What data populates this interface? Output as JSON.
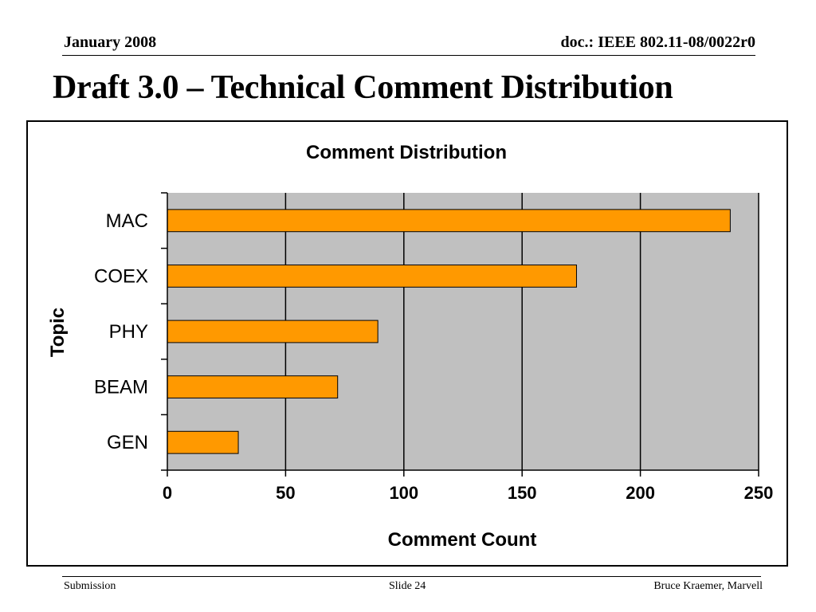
{
  "header": {
    "date": "January 2008",
    "doc_id": "doc.: IEEE 802.11-08/0022r0"
  },
  "slide_title": "Draft 3.0 – Technical Comment Distribution",
  "footer": {
    "left": "Submission",
    "center": "Slide 24",
    "right": "Bruce Kraemer, Marvell"
  },
  "colors": {
    "bar_fill": "#FF9900",
    "plot_background": "#C0C0C0"
  },
  "chart_data": {
    "type": "bar",
    "orientation": "horizontal",
    "title": "Comment Distribution",
    "xlabel": "Comment Count",
    "ylabel": "Topic",
    "categories": [
      "MAC",
      "COEX",
      "PHY",
      "BEAM",
      "GEN"
    ],
    "values": [
      238,
      173,
      89,
      72,
      30
    ],
    "xlim": [
      0,
      250
    ],
    "xticks": [
      0,
      50,
      100,
      150,
      200,
      250
    ],
    "grid": true,
    "legend": "none"
  }
}
